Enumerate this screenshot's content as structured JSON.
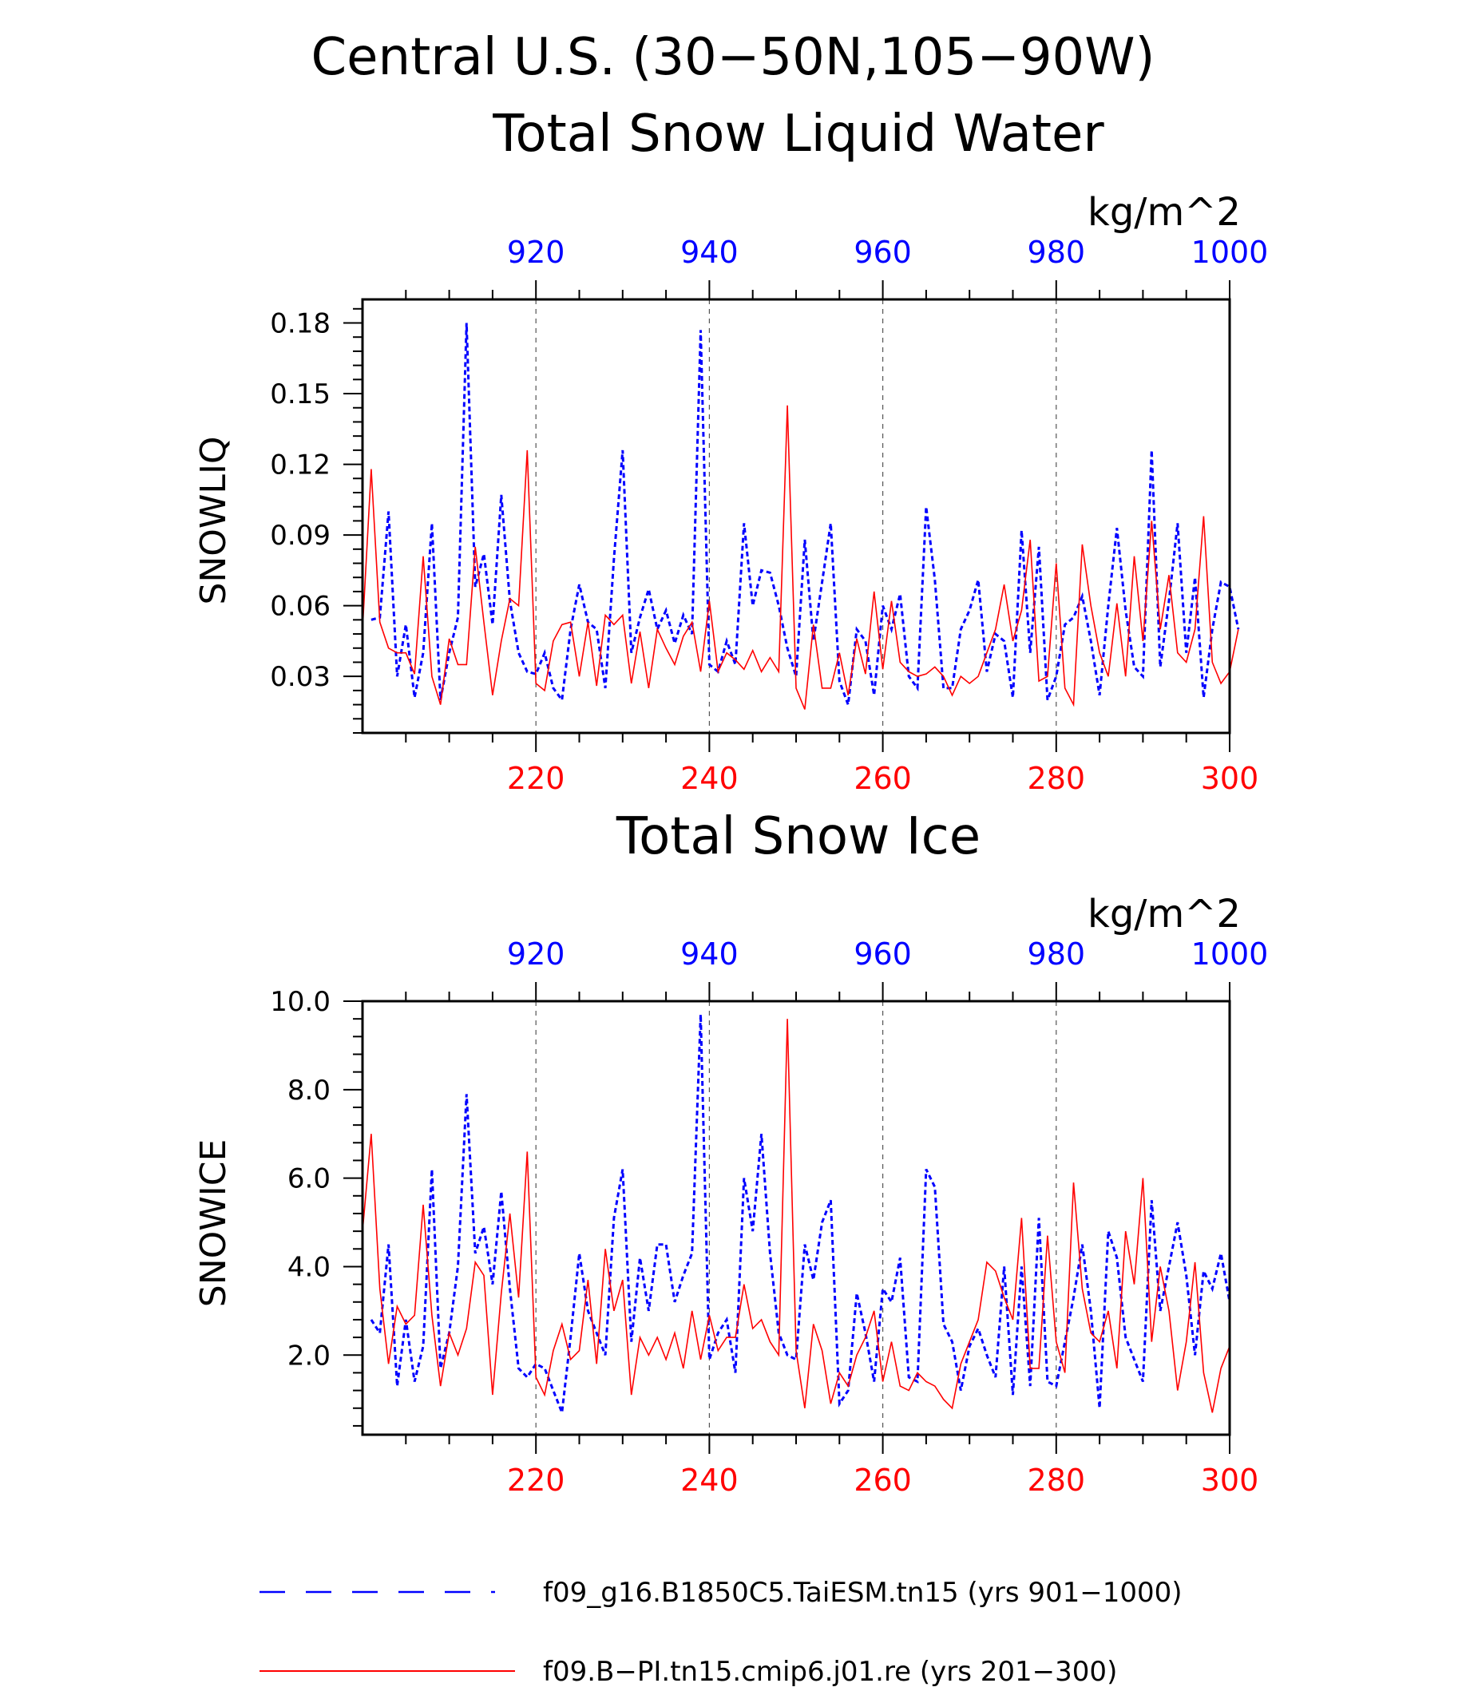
{
  "figure": {
    "title_line1": "Central U.S. (30−50N,105−90W)",
    "units": "kg/m^2",
    "colors": {
      "blue": "#0000ff",
      "red": "#ff0000",
      "axis": "#000000",
      "grid": "#555555"
    }
  },
  "legend": {
    "entries": [
      {
        "label": "f09_g16.B1850C5.TaiESM.tn15 (yrs 901−1000)",
        "color": "#0000ff",
        "style": "dashed"
      },
      {
        "label": "f09.B−PI.tn15.cmip6.j01.re (yrs 201−300)",
        "color": "#ff0000",
        "style": "solid"
      }
    ]
  },
  "chart_data": [
    {
      "type": "line",
      "title": "Total Snow Liquid Water",
      "ylabel": "SNOWLIQ",
      "units": "kg/m^2",
      "ylim": [
        0.006,
        0.19
      ],
      "yticks": [
        0.03,
        0.06,
        0.09,
        0.12,
        0.15,
        0.18
      ],
      "yticklabels": [
        "0.03",
        "0.06",
        "0.09",
        "0.12",
        "0.15",
        "0.18"
      ],
      "bottom_axis": {
        "color": "#ff0000",
        "range": [
          201,
          300
        ],
        "ticks": [
          220,
          240,
          260,
          280,
          300
        ]
      },
      "top_axis": {
        "color": "#0000ff",
        "range": [
          901,
          1000
        ],
        "ticks": [
          920,
          940,
          960,
          980,
          1000
        ]
      },
      "grid": "vertical dashed at top/bottom major ticks",
      "series": [
        {
          "name": "f09_g16.B1850C5.TaiESM.tn15 (yrs 901−1000)",
          "axis": "top",
          "color": "#0000ff",
          "style": "dashed",
          "x_start": 901,
          "values": [
            0.054,
            0.055,
            0.1,
            0.03,
            0.052,
            0.021,
            0.04,
            0.095,
            0.02,
            0.04,
            0.055,
            0.18,
            0.068,
            0.082,
            0.052,
            0.107,
            0.062,
            0.04,
            0.032,
            0.031,
            0.04,
            0.025,
            0.02,
            0.05,
            0.069,
            0.053,
            0.05,
            0.025,
            0.08,
            0.126,
            0.04,
            0.055,
            0.067,
            0.05,
            0.058,
            0.044,
            0.056,
            0.048,
            0.177,
            0.035,
            0.032,
            0.045,
            0.035,
            0.095,
            0.06,
            0.075,
            0.074,
            0.06,
            0.042,
            0.03,
            0.088,
            0.045,
            0.07,
            0.095,
            0.028,
            0.018,
            0.05,
            0.045,
            0.022,
            0.06,
            0.05,
            0.065,
            0.03,
            0.025,
            0.102,
            0.071,
            0.025,
            0.025,
            0.05,
            0.058,
            0.071,
            0.032,
            0.048,
            0.045,
            0.021,
            0.092,
            0.04,
            0.085,
            0.02,
            0.03,
            0.052,
            0.055,
            0.064,
            0.045,
            0.022,
            0.06,
            0.093,
            0.058,
            0.034,
            0.03,
            0.126,
            0.034,
            0.062,
            0.095,
            0.04,
            0.072,
            0.021,
            0.05,
            0.07,
            0.068,
            0.05
          ]
        },
        {
          "name": "f09.B−PI.tn15.cmip6.j01.re (yrs 201−300)",
          "axis": "bottom",
          "color": "#ff0000",
          "style": "solid",
          "x_start": 200,
          "values": [
            0.05,
            0.118,
            0.053,
            0.042,
            0.04,
            0.04,
            0.031,
            0.081,
            0.03,
            0.018,
            0.046,
            0.035,
            0.035,
            0.085,
            0.053,
            0.022,
            0.045,
            0.063,
            0.06,
            0.126,
            0.027,
            0.024,
            0.045,
            0.052,
            0.053,
            0.03,
            0.053,
            0.026,
            0.056,
            0.052,
            0.056,
            0.027,
            0.049,
            0.025,
            0.05,
            0.042,
            0.035,
            0.047,
            0.053,
            0.032,
            0.062,
            0.032,
            0.04,
            0.037,
            0.033,
            0.041,
            0.032,
            0.038,
            0.032,
            0.145,
            0.025,
            0.016,
            0.052,
            0.025,
            0.025,
            0.04,
            0.022,
            0.046,
            0.031,
            0.066,
            0.033,
            0.062,
            0.036,
            0.032,
            0.03,
            0.031,
            0.034,
            0.03,
            0.022,
            0.03,
            0.027,
            0.03,
            0.04,
            0.05,
            0.069,
            0.045,
            0.058,
            0.088,
            0.028,
            0.03,
            0.078,
            0.025,
            0.018,
            0.086,
            0.06,
            0.04,
            0.03,
            0.061,
            0.03,
            0.081,
            0.045,
            0.096,
            0.05,
            0.073,
            0.04,
            0.036,
            0.05,
            0.098,
            0.036,
            0.027,
            0.032,
            0.05
          ]
        }
      ]
    },
    {
      "type": "line",
      "title": "Total Snow Ice",
      "ylabel": "SNOWICE",
      "units": "kg/m^2",
      "ylim": [
        0.2,
        10.0
      ],
      "yticks": [
        2.0,
        4.0,
        6.0,
        8.0,
        10.0
      ],
      "yticklabels": [
        "2.0",
        "4.0",
        "6.0",
        "8.0",
        "10.0"
      ],
      "bottom_axis": {
        "color": "#ff0000",
        "range": [
          201,
          300
        ],
        "ticks": [
          220,
          240,
          260,
          280,
          300
        ]
      },
      "top_axis": {
        "color": "#0000ff",
        "range": [
          901,
          1000
        ],
        "ticks": [
          920,
          940,
          960,
          980,
          1000
        ]
      },
      "grid": "vertical dashed at top/bottom major ticks",
      "series": [
        {
          "name": "f09_g16.B1850C5.TaiESM.tn15 (yrs 901−1000)",
          "axis": "top",
          "color": "#0000ff",
          "style": "dashed",
          "x_start": 901,
          "values": [
            2.8,
            2.5,
            4.5,
            1.3,
            2.8,
            1.4,
            2.2,
            6.2,
            1.7,
            2.5,
            4.0,
            7.9,
            4.3,
            4.9,
            3.6,
            5.7,
            3.5,
            1.7,
            1.5,
            1.8,
            1.7,
            1.2,
            0.7,
            2.4,
            4.3,
            3.0,
            2.5,
            2.0,
            5.1,
            6.2,
            2.3,
            4.2,
            3.0,
            4.5,
            4.5,
            3.2,
            3.8,
            4.3,
            9.7,
            1.9,
            2.5,
            2.8,
            1.6,
            6.0,
            4.8,
            7.0,
            4.3,
            2.5,
            2.0,
            1.9,
            4.5,
            3.7,
            5.0,
            5.5,
            0.9,
            1.2,
            3.4,
            2.5,
            1.4,
            3.5,
            3.2,
            4.2,
            1.5,
            1.4,
            6.2,
            5.8,
            2.7,
            2.3,
            1.2,
            2.2,
            2.6,
            2.0,
            1.5,
            4.0,
            1.1,
            4.0,
            1.3,
            5.1,
            1.4,
            1.3,
            2.3,
            3.3,
            4.5,
            3.0,
            0.8,
            4.8,
            4.2,
            2.4,
            1.9,
            1.4,
            5.5,
            3.0,
            4.0,
            5.0,
            3.8,
            2.0,
            3.9,
            3.5,
            4.3,
            3.2
          ]
        },
        {
          "name": "f09.B−PI.tn15.cmip6.j01.re (yrs 201−300)",
          "axis": "bottom",
          "color": "#ff0000",
          "style": "solid",
          "x_start": 200,
          "values": [
            4.8,
            7.0,
            3.5,
            1.8,
            3.1,
            2.7,
            2.9,
            5.4,
            2.9,
            1.3,
            2.5,
            2.0,
            2.6,
            4.1,
            3.8,
            1.1,
            3.4,
            5.2,
            3.3,
            6.6,
            1.5,
            1.1,
            2.1,
            2.7,
            1.9,
            2.1,
            3.7,
            1.8,
            4.4,
            3.0,
            3.7,
            1.1,
            2.4,
            2.0,
            2.4,
            1.9,
            2.5,
            1.7,
            3.0,
            1.9,
            2.9,
            2.1,
            2.4,
            2.4,
            3.6,
            2.6,
            2.8,
            2.3,
            2.0,
            9.6,
            2.1,
            0.8,
            2.7,
            2.1,
            0.9,
            1.6,
            1.3,
            2.0,
            2.4,
            3.0,
            1.4,
            2.3,
            1.3,
            1.2,
            1.6,
            1.4,
            1.3,
            1.0,
            0.8,
            1.8,
            2.3,
            2.8,
            4.1,
            3.9,
            3.3,
            2.8,
            5.1,
            1.7,
            1.7,
            4.7,
            2.3,
            1.6,
            5.9,
            3.5,
            2.5,
            2.3,
            3.0,
            1.7,
            4.8,
            3.6,
            6.0,
            2.3,
            4.0,
            3.0,
            1.2,
            2.3,
            4.1,
            1.6,
            0.7,
            1.7,
            2.2
          ]
        }
      ]
    }
  ]
}
